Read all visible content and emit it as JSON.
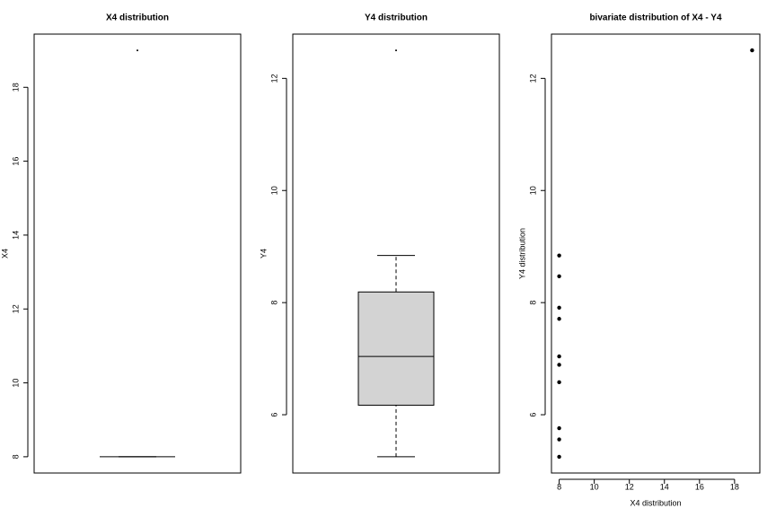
{
  "chart_data": [
    {
      "type": "boxplot",
      "title": "X4 distribution",
      "ylabel": "X4",
      "box": {
        "min": 8,
        "q1": 8,
        "median": 8,
        "q3": 8,
        "max": 8,
        "outliers": [
          19
        ]
      },
      "color": "#d3d3d3",
      "ylim": [
        7.56,
        19.44
      ],
      "yticks": [
        8,
        10,
        12,
        14,
        16,
        18
      ]
    },
    {
      "type": "boxplot",
      "title": "Y4 distribution",
      "ylabel": "Y4",
      "box": {
        "min": 5.25,
        "q1": 6.17,
        "median": 7.04,
        "q3": 8.19,
        "max": 8.84,
        "outliers": [
          12.5
        ]
      },
      "color": "#d3d3d3",
      "ylim": [
        4.96,
        12.79
      ],
      "yticks": [
        6,
        8,
        10,
        12
      ]
    },
    {
      "type": "scatter",
      "title": "bivariate distribution of X4 - Y4",
      "xlabel": "X4 distribution",
      "ylabel": "Y4 distribution",
      "x": [
        8,
        8,
        8,
        8,
        8,
        8,
        8,
        19,
        8,
        8,
        8
      ],
      "values": [
        6.58,
        5.76,
        7.71,
        8.84,
        8.47,
        7.04,
        5.25,
        12.5,
        5.56,
        7.91,
        6.89
      ],
      "color": "#000000",
      "xlim": [
        7.56,
        19.44
      ],
      "xticks": [
        8,
        10,
        12,
        14,
        16,
        18
      ],
      "ylim": [
        4.96,
        12.79
      ],
      "yticks": [
        6,
        8,
        10,
        12
      ]
    }
  ]
}
